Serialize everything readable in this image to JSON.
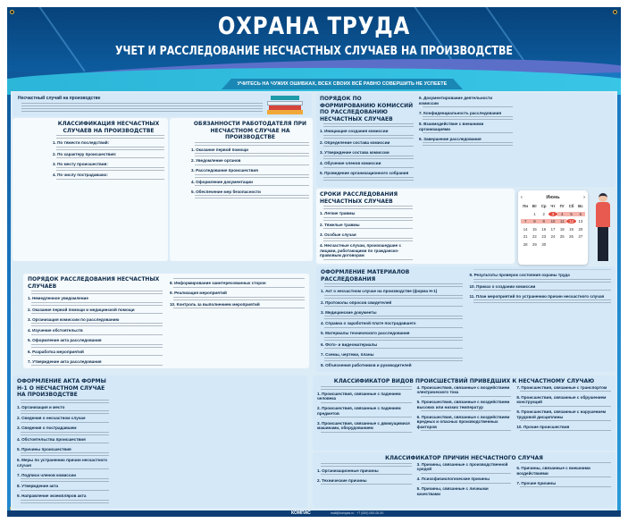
{
  "header": {
    "title": "ОХРАНА ТРУДА",
    "subtitle": "УЧЕТ И РАССЛЕДОВАНИЕ НЕСЧАСТНЫХ СЛУЧАЕВ НА ПРОИЗВОДСТВЕ",
    "tagline": "УЧИТЕСЬ НА ЧУЖИХ ОШИБКАХ, ВСЕХ СВОИХ ВСЁ РАВНО СОВЕРШИТЬ НЕ УСПЕЕТЕ"
  },
  "intro": {
    "term": "Несчастный случай на производстве"
  },
  "sections": {
    "classification": {
      "title": "КЛАССИФИКАЦИЯ НЕСЧАСТНЫХ СЛУЧАЕВ НА ПРОИЗВОДСТВЕ",
      "items": [
        "1. По тяжести последствий:",
        "2. По характеру происшествия:",
        "3. По месту происшествия:",
        "4. По числу пострадавших:"
      ]
    },
    "duties": {
      "title": "ОБЯЗАННОСТИ РАБОТОДАТЕЛЯ ПРИ НЕСЧАСТНОМ СЛУЧАЕ НА ПРОИЗВОДСТВЕ",
      "items": [
        "1. Оказание первой помощи",
        "2. Уведомление органов",
        "3. Расследование происшествия",
        "4. Оформление документации",
        "5. Обеспечение мер безопасности"
      ]
    },
    "commission": {
      "title": "ПОРЯДОК ПО ФОРМИРОВАНИЮ КОМИССИЙ ПО РАССЛЕДОВАНИЮ НЕСЧАСТНЫХ СЛУЧАЕВ",
      "items": [
        "1. Инициация создания комиссии",
        "2. Определение состава комиссии",
        "3. Утверждение состава комиссии",
        "4. Обучение членов комиссии",
        "5. Проведение организационного собрания",
        "6. Документирование деятельности комиссии",
        "7. Конфиденциальность расследования",
        "8. Взаимодействие с внешними организациями",
        "9. Завершение расследования"
      ]
    },
    "deadlines": {
      "title": "СРОКИ РАССЛЕДОВАНИЯ НЕСЧАСТНЫХ СЛУЧАЕВ",
      "items": [
        "1. Легкие травмы",
        "2. Тяжелые травмы",
        "3. Особые случаи",
        "4. Несчастные случаи, произошедшие с лицами, работающими по гражданско-правовым договорам"
      ]
    },
    "procedure": {
      "title": "ПОРЯДОК РАССЛЕДОВАНИЯ НЕСЧАСТНЫХ СЛУЧАЕВ",
      "items": [
        "1. Немедленное уведомление",
        "2. Оказание первой помощи и медицинской помощи",
        "3. Организация комиссии по расследованию",
        "4. Изучение обстоятельств",
        "5. Оформление акта расследования",
        "6. Разработка мероприятий",
        "7. Утверждение акта расследования",
        "8. Информирование заинтересованных сторон",
        "9. Реализация мероприятий",
        "10. Контроль за выполнением мероприятий"
      ]
    },
    "materials": {
      "title": "ОФОРМЛЕНИЕ МАТЕРИАЛОВ РАССЛЕДОВАНИЯ",
      "items": [
        "1. Акт о несчастном случае на производстве (форма Н-1)",
        "2. Протоколы опросов свидетелей",
        "3. Медицинские документы",
        "4. Справка о заработной плате пострадавшего",
        "5. Материалы технического расследования",
        "6. Фото- и видеоматериалы",
        "7. Схемы, чертежи, планы",
        "8. Объяснения работников и руководителей",
        "9. Результаты проверок состояния охраны труда",
        "10. Приказ о создании комиссии",
        "11. План мероприятий по устранению причин несчастного случая"
      ]
    },
    "act": {
      "title": "ОФОРМЛЕНИЕ АКТА ФОРМЫ Н-1 О НЕСЧАСТНОМ СЛУЧАЕ НА ПРОИЗВОДСТВЕ",
      "items": [
        "1. Организация и место",
        "2. Сведения о несчастном случае",
        "3. Сведения о пострадавшем",
        "4. Обстоятельства происшествия",
        "5. Причины происшествия",
        "6. Меры по устранению причин несчастного случая",
        "7. Подписи членов комиссии",
        "8. Утверждение акта",
        "9. Направление экземпляров акта"
      ]
    },
    "incident_types": {
      "title": "КЛАССИФИКАТОР ВИДОВ ПРОИСШЕСТВИЙ ПРИВЕДШИХ К НЕСЧАСТНОМУ СЛУЧАЮ",
      "items": [
        "1. Происшествия, связанные с падением человека",
        "2. Происшествия, связанные с падением предметов",
        "3. Происшествия, связанные с движущимися машинами, оборудованием",
        "4. Происшествия, связанные с воздействием электрического тока",
        "5. Происшествия, связанные с воздействием высоких или низких температур",
        "6. Происшествия, связанные с воздействием вредных и опасных производственных факторов",
        "7. Происшествия, связанные с транспортом",
        "8. Происшествия, связанные с обрушением конструкций",
        "9. Происшествия, связанные с нарушением трудовой дисциплины",
        "10. Прочие происшествия"
      ]
    },
    "causes": {
      "title": "КЛАССИФИКАТОР ПРИЧИН НЕСЧАСТНОГО СЛУЧАЯ",
      "items": [
        "1. Организационные причины",
        "2. Технические причины",
        "3. Причины, связанные с производственной средой",
        "4. Психофизиологические причины",
        "5. Причины, связанные с личными качествами",
        "6. Причины, связанные с внешними воздействиями",
        "7. Прочие причины"
      ]
    }
  },
  "calendar": {
    "month": "Июнь",
    "weekdays": [
      "Пн",
      "Вт",
      "Ср",
      "Чт",
      "Пт",
      "Сб",
      "Вс"
    ],
    "first_weekday_index": 1,
    "days": 30,
    "highlighted_days": [
      3,
      4,
      5,
      6,
      7,
      8,
      9,
      10,
      11,
      12
    ],
    "marked_days": [
      3,
      12
    ]
  },
  "footer": {
    "logo": "КОМПАС",
    "email": "mail@kompas.ru",
    "phone": "+7 (000) 000-00-00"
  },
  "colors": {
    "header": "#07427a",
    "accent": "#e34a3d",
    "band": "#39c6e6"
  }
}
